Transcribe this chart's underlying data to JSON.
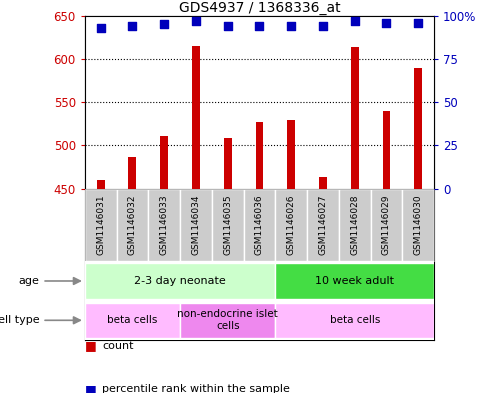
{
  "title": "GDS4937 / 1368336_at",
  "samples": [
    "GSM1146031",
    "GSM1146032",
    "GSM1146033",
    "GSM1146034",
    "GSM1146035",
    "GSM1146036",
    "GSM1146026",
    "GSM1146027",
    "GSM1146028",
    "GSM1146029",
    "GSM1146030"
  ],
  "counts": [
    460,
    487,
    511,
    615,
    509,
    527,
    529,
    463,
    614,
    540,
    590
  ],
  "percentiles": [
    93,
    94,
    95,
    97,
    94,
    94,
    94,
    94,
    97,
    96,
    96
  ],
  "ylim_left": [
    450,
    650
  ],
  "ylim_right": [
    0,
    100
  ],
  "yticks_left": [
    450,
    500,
    550,
    600,
    650
  ],
  "yticks_right": [
    0,
    25,
    50,
    75,
    100
  ],
  "ytick_labels_right": [
    "0",
    "25",
    "50",
    "75",
    "100%"
  ],
  "bar_color": "#cc0000",
  "dot_color": "#0000bb",
  "dot_size": 30,
  "bar_bottom": 450,
  "bar_width": 0.25,
  "age_groups": [
    {
      "label": "2-3 day neonate",
      "start": 0,
      "end": 6,
      "color": "#ccffcc"
    },
    {
      "label": "10 week adult",
      "start": 6,
      "end": 11,
      "color": "#44dd44"
    }
  ],
  "cell_type_groups": [
    {
      "label": "beta cells",
      "start": 0,
      "end": 3,
      "color": "#ffbbff"
    },
    {
      "label": "non-endocrine islet\ncells",
      "start": 3,
      "end": 6,
      "color": "#ee88ee"
    },
    {
      "label": "beta cells",
      "start": 6,
      "end": 11,
      "color": "#ffbbff"
    }
  ],
  "legend_items": [
    {
      "color": "#cc0000",
      "label": "count"
    },
    {
      "color": "#0000bb",
      "label": "percentile rank within the sample"
    }
  ],
  "background_color": "#ffffff",
  "tick_label_area_color": "#cccccc",
  "label_area_border_color": "#999999"
}
